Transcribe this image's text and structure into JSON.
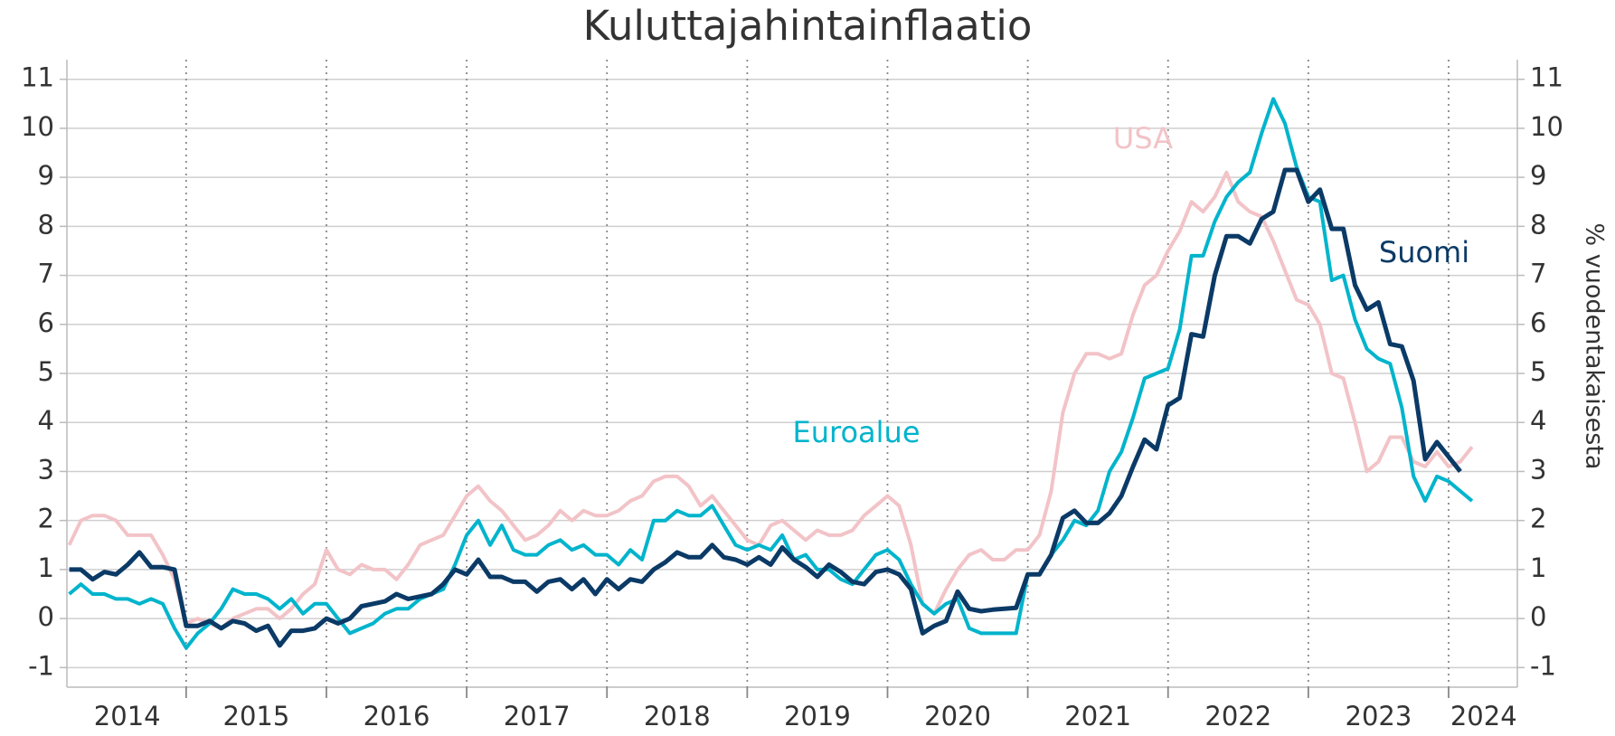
{
  "chart_data": {
    "type": "line",
    "title": "Kuluttajahintainflaatio",
    "ylabel": "% vuodentakaisesta",
    "x": [
      2014.167,
      2014.25,
      2014.333,
      2014.417,
      2014.5,
      2014.583,
      2014.667,
      2014.75,
      2014.833,
      2014.917,
      2015.0,
      2015.083,
      2015.167,
      2015.25,
      2015.333,
      2015.417,
      2015.5,
      2015.583,
      2015.667,
      2015.75,
      2015.833,
      2015.917,
      2016.0,
      2016.083,
      2016.167,
      2016.25,
      2016.333,
      2016.417,
      2016.5,
      2016.583,
      2016.667,
      2016.75,
      2016.833,
      2016.917,
      2017.0,
      2017.083,
      2017.167,
      2017.25,
      2017.333,
      2017.417,
      2017.5,
      2017.583,
      2017.667,
      2017.75,
      2017.833,
      2017.917,
      2018.0,
      2018.083,
      2018.167,
      2018.25,
      2018.333,
      2018.417,
      2018.5,
      2018.583,
      2018.667,
      2018.75,
      2018.833,
      2018.917,
      2019.0,
      2019.083,
      2019.167,
      2019.25,
      2019.333,
      2019.417,
      2019.5,
      2019.583,
      2019.667,
      2019.75,
      2019.833,
      2019.917,
      2020.0,
      2020.083,
      2020.167,
      2020.25,
      2020.333,
      2020.417,
      2020.5,
      2020.583,
      2020.667,
      2020.75,
      2020.833,
      2020.917,
      2021.0,
      2021.083,
      2021.167,
      2021.25,
      2021.333,
      2021.417,
      2021.5,
      2021.583,
      2021.667,
      2021.75,
      2021.833,
      2021.917,
      2022.0,
      2022.083,
      2022.167,
      2022.25,
      2022.333,
      2022.417,
      2022.5,
      2022.583,
      2022.667,
      2022.75,
      2022.833,
      2022.917,
      2023.0,
      2023.083,
      2023.167,
      2023.25,
      2023.333,
      2023.417,
      2023.5,
      2023.583,
      2023.667,
      2023.75,
      2023.833,
      2023.917,
      2024.0,
      2024.083,
      2024.167
    ],
    "series": [
      {
        "name": "USA",
        "color": "#f2c3c7",
        "values": [
          1.5,
          2.0,
          2.1,
          2.1,
          2.0,
          1.7,
          1.7,
          1.7,
          1.3,
          0.8,
          -0.1,
          0.0,
          -0.1,
          -0.2,
          0.0,
          0.1,
          0.2,
          0.2,
          0.0,
          0.2,
          0.5,
          0.7,
          1.4,
          1.0,
          0.9,
          1.1,
          1.0,
          1.0,
          0.8,
          1.1,
          1.5,
          1.6,
          1.7,
          2.1,
          2.5,
          2.7,
          2.4,
          2.2,
          1.9,
          1.6,
          1.7,
          1.9,
          2.2,
          2.0,
          2.2,
          2.1,
          2.1,
          2.2,
          2.4,
          2.5,
          2.8,
          2.9,
          2.9,
          2.7,
          2.3,
          2.5,
          2.2,
          1.9,
          1.6,
          1.5,
          1.9,
          2.0,
          1.8,
          1.6,
          1.8,
          1.7,
          1.7,
          1.8,
          2.1,
          2.3,
          2.5,
          2.3,
          1.5,
          0.3,
          0.1,
          0.6,
          1.0,
          1.3,
          1.4,
          1.2,
          1.2,
          1.4,
          1.4,
          1.7,
          2.6,
          4.2,
          5.0,
          5.4,
          5.4,
          5.3,
          5.4,
          6.2,
          6.8,
          7.0,
          7.5,
          7.9,
          8.5,
          8.3,
          8.6,
          9.1,
          8.5,
          8.3,
          8.2,
          7.7,
          7.1,
          6.5,
          6.4,
          6.0,
          5.0,
          4.9,
          4.0,
          3.0,
          3.2,
          3.7,
          3.7,
          3.2,
          3.1,
          3.4,
          3.1,
          3.2,
          3.5
        ]
      },
      {
        "name": "Euroalue",
        "color": "#00b4cc",
        "values": [
          0.5,
          0.7,
          0.5,
          0.5,
          0.4,
          0.4,
          0.3,
          0.4,
          0.3,
          -0.2,
          -0.6,
          -0.3,
          -0.1,
          0.2,
          0.6,
          0.5,
          0.5,
          0.4,
          0.2,
          0.4,
          0.1,
          0.3,
          0.3,
          0.0,
          -0.3,
          -0.2,
          -0.1,
          0.1,
          0.2,
          0.2,
          0.4,
          0.5,
          0.6,
          1.1,
          1.7,
          2.0,
          1.5,
          1.9,
          1.4,
          1.3,
          1.3,
          1.5,
          1.6,
          1.4,
          1.5,
          1.3,
          1.3,
          1.1,
          1.4,
          1.2,
          2.0,
          2.0,
          2.2,
          2.1,
          2.1,
          2.3,
          1.9,
          1.5,
          1.4,
          1.5,
          1.4,
          1.7,
          1.2,
          1.3,
          1.0,
          1.0,
          0.8,
          0.7,
          1.0,
          1.3,
          1.4,
          1.2,
          0.7,
          0.3,
          0.1,
          0.3,
          0.4,
          -0.2,
          -0.3,
          -0.3,
          -0.3,
          -0.3,
          0.9,
          0.9,
          1.3,
          1.6,
          2.0,
          1.9,
          2.2,
          3.0,
          3.4,
          4.1,
          4.9,
          5.0,
          5.1,
          5.9,
          7.4,
          7.4,
          8.1,
          8.6,
          8.9,
          9.1,
          9.9,
          10.6,
          10.1,
          9.2,
          8.6,
          8.5,
          6.9,
          7.0,
          6.1,
          5.5,
          5.3,
          5.2,
          4.3,
          2.9,
          2.4,
          2.9,
          2.8,
          2.6,
          2.4
        ]
      },
      {
        "name": "Suomi",
        "color": "#0b3a66",
        "values": [
          1.0,
          1.0,
          0.8,
          0.95,
          0.9,
          1.1,
          1.35,
          1.05,
          1.05,
          1.0,
          -0.15,
          -0.15,
          -0.05,
          -0.2,
          -0.05,
          -0.1,
          -0.25,
          -0.15,
          -0.55,
          -0.25,
          -0.25,
          -0.2,
          0.0,
          -0.1,
          0.0,
          0.25,
          0.3,
          0.35,
          0.5,
          0.4,
          0.45,
          0.5,
          0.7,
          1.0,
          0.9,
          1.2,
          0.85,
          0.85,
          0.75,
          0.75,
          0.55,
          0.75,
          0.8,
          0.6,
          0.8,
          0.5,
          0.8,
          0.6,
          0.8,
          0.75,
          1.0,
          1.15,
          1.35,
          1.25,
          1.25,
          1.5,
          1.25,
          1.2,
          1.1,
          1.25,
          1.1,
          1.45,
          1.2,
          1.05,
          0.85,
          1.1,
          0.95,
          0.75,
          0.7,
          0.95,
          1.0,
          0.9,
          0.6,
          -0.3,
          -0.15,
          -0.05,
          0.55,
          0.2,
          0.15,
          0.18,
          0.2,
          0.22,
          0.9,
          0.9,
          1.3,
          2.05,
          2.2,
          1.95,
          1.95,
          2.15,
          2.5,
          3.1,
          3.65,
          3.45,
          4.35,
          4.5,
          5.8,
          5.75,
          7.0,
          7.8,
          7.8,
          7.65,
          8.15,
          8.3,
          9.15,
          9.15,
          8.5,
          8.75,
          7.95,
          7.95,
          6.8,
          6.3,
          6.45,
          5.6,
          5.55,
          4.85,
          3.25,
          3.6,
          3.3,
          3.0,
          null
        ]
      }
    ],
    "xlim": [
      2014.15,
      2024.49
    ],
    "xticks": [
      2015,
      2016,
      2017,
      2018,
      2019,
      2020,
      2021,
      2022,
      2023,
      2024
    ],
    "xtick_labels": [
      {
        "value": 2014.58,
        "label": "2014"
      },
      {
        "value": 2015.5,
        "label": "2015"
      },
      {
        "value": 2016.5,
        "label": "2016"
      },
      {
        "value": 2017.5,
        "label": "2017"
      },
      {
        "value": 2018.5,
        "label": "2018"
      },
      {
        "value": 2019.5,
        "label": "2019"
      },
      {
        "value": 2020.5,
        "label": "2020"
      },
      {
        "value": 2021.5,
        "label": "2021"
      },
      {
        "value": 2022.5,
        "label": "2022"
      },
      {
        "value": 2023.5,
        "label": "2023"
      },
      {
        "value": 2024.25,
        "label": "2024"
      }
    ],
    "ylim": [
      -1.4,
      11.4
    ],
    "yticks": [
      -1,
      0,
      1,
      2,
      3,
      4,
      5,
      6,
      7,
      8,
      9,
      10,
      11
    ],
    "grid": true
  }
}
